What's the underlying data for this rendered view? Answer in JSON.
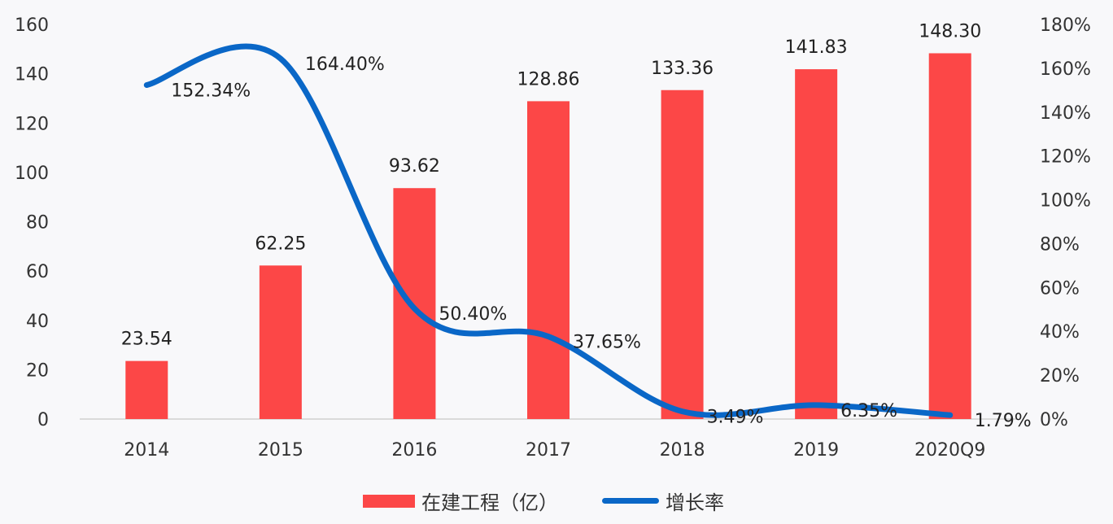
{
  "chart_data": {
    "type": "bar+line",
    "title": "",
    "categories": [
      "2014",
      "2015",
      "2016",
      "2017",
      "2018",
      "2019",
      "2020Q9"
    ],
    "series": [
      {
        "name": "在建工程（亿）",
        "type": "bar",
        "axis": "left",
        "color": "#fc4747",
        "values": [
          23.54,
          62.25,
          93.62,
          128.86,
          133.36,
          141.83,
          148.3
        ],
        "labels": [
          "23.54",
          "62.25",
          "93.62",
          "128.86",
          "133.36",
          "141.83",
          "148.30"
        ]
      },
      {
        "name": "增长率",
        "type": "line",
        "axis": "right",
        "color": "#0a67c7",
        "values": [
          152.34,
          164.4,
          50.4,
          37.65,
          3.49,
          6.35,
          1.79
        ],
        "labels": [
          "152.34%",
          "164.40%",
          "50.40%",
          "37.65%",
          "3.49%",
          "6.35%",
          "1.79%"
        ]
      }
    ],
    "left_axis": {
      "ticks": [
        "0",
        "20",
        "40",
        "60",
        "80",
        "100",
        "120",
        "140",
        "160"
      ],
      "ylim": [
        0,
        160
      ]
    },
    "right_axis": {
      "ticks": [
        "0%",
        "20%",
        "40%",
        "60%",
        "80%",
        "100%",
        "120%",
        "140%",
        "160%",
        "180%"
      ],
      "ylim": [
        0,
        180
      ]
    },
    "grid": false,
    "legend_position": "bottom"
  },
  "legend": {
    "bar_label": "在建工程（亿）",
    "line_label": "增长率"
  }
}
